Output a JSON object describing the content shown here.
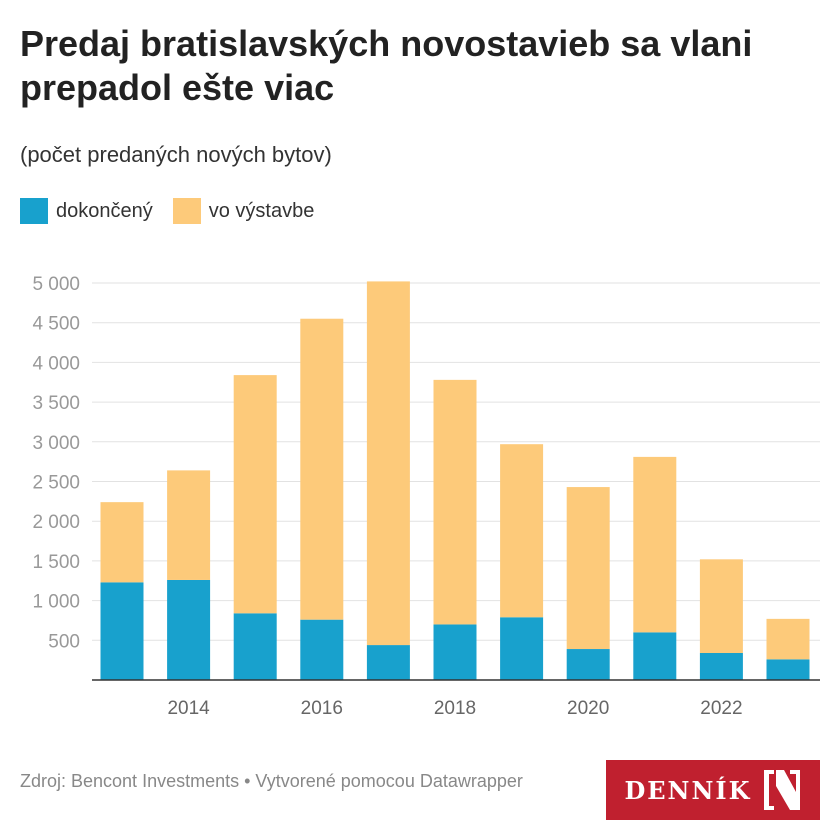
{
  "title": "Predaj bratislavských novostavieb sa vlani prepadol ešte viac",
  "subtitle": "(počet predaných nových bytov)",
  "footer": {
    "source": "Zdroj: Bencont Investments • Vytvorené pomocou Datawrapper",
    "logo_text": "DENNÍK N"
  },
  "chart_data": {
    "type": "bar",
    "stacked": true,
    "categories": [
      "2013",
      "2014",
      "2015",
      "2016",
      "2017",
      "2018",
      "2019",
      "2020",
      "2021",
      "2022",
      "2023"
    ],
    "x_tick_labels": [
      "2014",
      "2016",
      "2018",
      "2020",
      "2022"
    ],
    "series": [
      {
        "name": "dokončený",
        "color": "#18a1cd",
        "values": [
          1230,
          1260,
          840,
          760,
          440,
          700,
          790,
          390,
          600,
          340,
          260
        ]
      },
      {
        "name": "vo výstavbe",
        "color": "#fdca7a",
        "values": [
          1010,
          1380,
          3000,
          3790,
          4580,
          3080,
          2180,
          2040,
          2210,
          1180,
          510
        ]
      }
    ],
    "ylim": [
      0,
      5000
    ],
    "y_ticks": [
      500,
      1000,
      1500,
      2000,
      2500,
      3000,
      3500,
      4000,
      4500,
      5000
    ],
    "y_tick_labels": [
      "500",
      "1 000",
      "1 500",
      "2 000",
      "2 500",
      "3 000",
      "3 500",
      "4 000",
      "4 500",
      "5 000"
    ],
    "grid": true,
    "legend": "top-left"
  }
}
